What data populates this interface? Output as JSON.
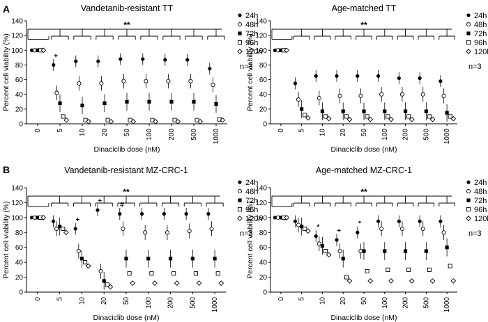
{
  "panels": [
    {
      "letter": "A",
      "chart_data": {
        "type": "scatter",
        "title": "Vandetanib-resistant TT",
        "xlabel": "Dinaciclib dose (nM)",
        "ylabel": "Percent cell viability (%)",
        "ylim": [
          0,
          140
        ],
        "yticks": [
          "0",
          "20",
          "40",
          "60",
          "80",
          "100",
          "120",
          "140"
        ],
        "categories": [
          "0",
          "5",
          "10",
          "20",
          "50",
          "100",
          "200",
          "500",
          "1000"
        ],
        "series": [
          {
            "name": "24h",
            "symbol": "filled-circle",
            "values": [
              100,
              80,
              85,
              85,
              88,
              88,
              87,
              87,
              75
            ]
          },
          {
            "name": "48h",
            "symbol": "open-circle",
            "values": [
              100,
              42,
              55,
              55,
              58,
              58,
              58,
              58,
              53
            ]
          },
          {
            "name": "72h",
            "symbol": "filled-square",
            "values": [
              100,
              28,
              25,
              28,
              30,
              30,
              30,
              30,
              27
            ]
          },
          {
            "name": "96h",
            "symbol": "open-square",
            "values": [
              100,
              10,
              5,
              5,
              5,
              5,
              5,
              5,
              6
            ]
          },
          {
            "name": "120h",
            "symbol": "open-diamond",
            "values": [
              100,
              5,
              3,
              3,
              3,
              3,
              3,
              3,
              5
            ]
          }
        ],
        "legend_position": "right",
        "annotations": {
          "significance": "**",
          "n": "n=3",
          "marks": [
            {
              "text": "+",
              "category": "5"
            }
          ]
        }
      }
    },
    {
      "letter": "",
      "chart_data": {
        "type": "scatter",
        "title": "Age-matched TT",
        "xlabel": "Dinaciclib dose (nM)",
        "ylabel": "Percent cell viability (%)",
        "ylim": [
          0,
          140
        ],
        "yticks": [
          "0",
          "20",
          "40",
          "60",
          "80",
          "100",
          "120",
          "140"
        ],
        "categories": [
          "0",
          "5",
          "10",
          "20",
          "50",
          "100",
          "200",
          "500",
          "1000"
        ],
        "series": [
          {
            "name": "24h",
            "symbol": "filled-circle",
            "values": [
              100,
              55,
              65,
              65,
              65,
              65,
              62,
              62,
              58
            ]
          },
          {
            "name": "48h",
            "symbol": "open-circle",
            "values": [
              100,
              33,
              35,
              38,
              38,
              40,
              40,
              40,
              38
            ]
          },
          {
            "name": "72h",
            "symbol": "filled-square",
            "values": [
              100,
              20,
              17,
              17,
              17,
              17,
              17,
              17,
              15
            ]
          },
          {
            "name": "96h",
            "symbol": "open-square",
            "values": [
              100,
              12,
              10,
              10,
              10,
              10,
              10,
              10,
              10
            ]
          },
          {
            "name": "120h",
            "symbol": "open-diamond",
            "values": [
              100,
              8,
              7,
              6,
              6,
              6,
              6,
              6,
              7
            ]
          }
        ],
        "legend_position": "right",
        "annotations": {
          "significance": "**",
          "n": "n=3",
          "marks": []
        }
      }
    },
    {
      "letter": "B",
      "chart_data": {
        "type": "scatter",
        "title": "Vandetanib-resistant MZ-CRC-1",
        "xlabel": "Dinaciclib dose (nM)",
        "ylabel": "Percent cell viability (%)",
        "ylim": [
          0,
          140
        ],
        "yticks": [
          "0",
          "20",
          "40",
          "60",
          "80",
          "100",
          "120",
          "140"
        ],
        "categories": [
          "0",
          "5",
          "10",
          "20",
          "50",
          "100",
          "200",
          "500",
          "1000"
        ],
        "series": [
          {
            "name": "24h",
            "symbol": "filled-circle",
            "values": [
              100,
              95,
              85,
              110,
              105,
              105,
              105,
              105,
              105
            ]
          },
          {
            "name": "48h",
            "symbol": "open-circle",
            "values": [
              100,
              85,
              55,
              28,
              85,
              80,
              80,
              82,
              85
            ]
          },
          {
            "name": "72h",
            "symbol": "filled-square",
            "values": [
              100,
              88,
              45,
              15,
              45,
              45,
              45,
              45,
              45
            ]
          },
          {
            "name": "96h",
            "symbol": "open-square",
            "values": [
              100,
              85,
              40,
              10,
              25,
              25,
              25,
              25,
              25
            ]
          },
          {
            "name": "120h",
            "symbol": "open-diamond",
            "values": [
              100,
              80,
              35,
              7,
              12,
              12,
              12,
              12,
              12
            ]
          }
        ],
        "legend_position": "right",
        "annotations": {
          "significance": "**",
          "n": "n=3",
          "marks": [
            {
              "text": "+",
              "category": "10"
            },
            {
              "text": "+",
              "category": "20"
            },
            {
              "text": "#",
              "category": "50"
            }
          ]
        }
      }
    },
    {
      "letter": "",
      "chart_data": {
        "type": "scatter",
        "title": "Age-matched MZ-CRC-1",
        "xlabel": "Dinaciclib dose (nM)",
        "ylabel": "Percent cell viability (%)",
        "ylim": [
          0,
          140
        ],
        "yticks": [
          "0",
          "20",
          "40",
          "60",
          "80",
          "100",
          "120",
          "140"
        ],
        "categories": [
          "0",
          "5",
          "10",
          "20",
          "50",
          "100",
          "200",
          "500",
          "1000"
        ],
        "series": [
          {
            "name": "24h",
            "symbol": "filled-circle",
            "values": [
              100,
              95,
              75,
              70,
              80,
              95,
              95,
              95,
              95
            ]
          },
          {
            "name": "48h",
            "symbol": "open-circle",
            "values": [
              100,
              90,
              65,
              55,
              55,
              85,
              85,
              85,
              80
            ]
          },
          {
            "name": "72h",
            "symbol": "filled-square",
            "values": [
              100,
              88,
              62,
              45,
              55,
              55,
              55,
              55,
              60
            ]
          },
          {
            "name": "96h",
            "symbol": "open-square",
            "values": [
              100,
              85,
              55,
              20,
              28,
              30,
              30,
              30,
              35
            ]
          },
          {
            "name": "120h",
            "symbol": "open-diamond",
            "values": [
              100,
              82,
              50,
              15,
              15,
              15,
              15,
              15,
              15
            ]
          }
        ],
        "legend_position": "right",
        "annotations": {
          "significance": "**",
          "n": "n=3",
          "marks": [
            {
              "text": "*",
              "category": "10"
            },
            {
              "text": "+",
              "category": "20"
            },
            {
              "text": "*",
              "category": "50"
            }
          ]
        }
      }
    }
  ]
}
